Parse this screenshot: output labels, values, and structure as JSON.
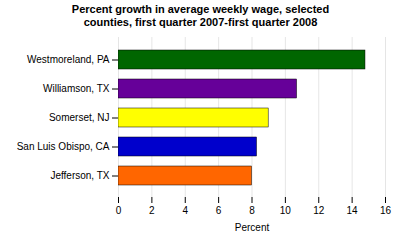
{
  "chart_data": {
    "type": "bar",
    "orientation": "horizontal",
    "title": "Percent growth in average weekly wage, selected\ncounties, first quarter 2007-first quarter 2008",
    "categories": [
      "Jefferson, TX",
      "San Luis Obispo, CA",
      "Somerset, NJ",
      "Williamson, TX",
      "Westmoreland, PA"
    ],
    "values": [
      8.0,
      8.3,
      9.0,
      10.7,
      14.8
    ],
    "colors": [
      "#FF6600",
      "#0000CC",
      "#FFFF00",
      "#660099",
      "#006600"
    ],
    "xlabel": "Percent",
    "xlim": [
      0,
      16
    ],
    "xticks": [
      0,
      2,
      4,
      6,
      8,
      10,
      12,
      14,
      16
    ],
    "grid": true
  }
}
